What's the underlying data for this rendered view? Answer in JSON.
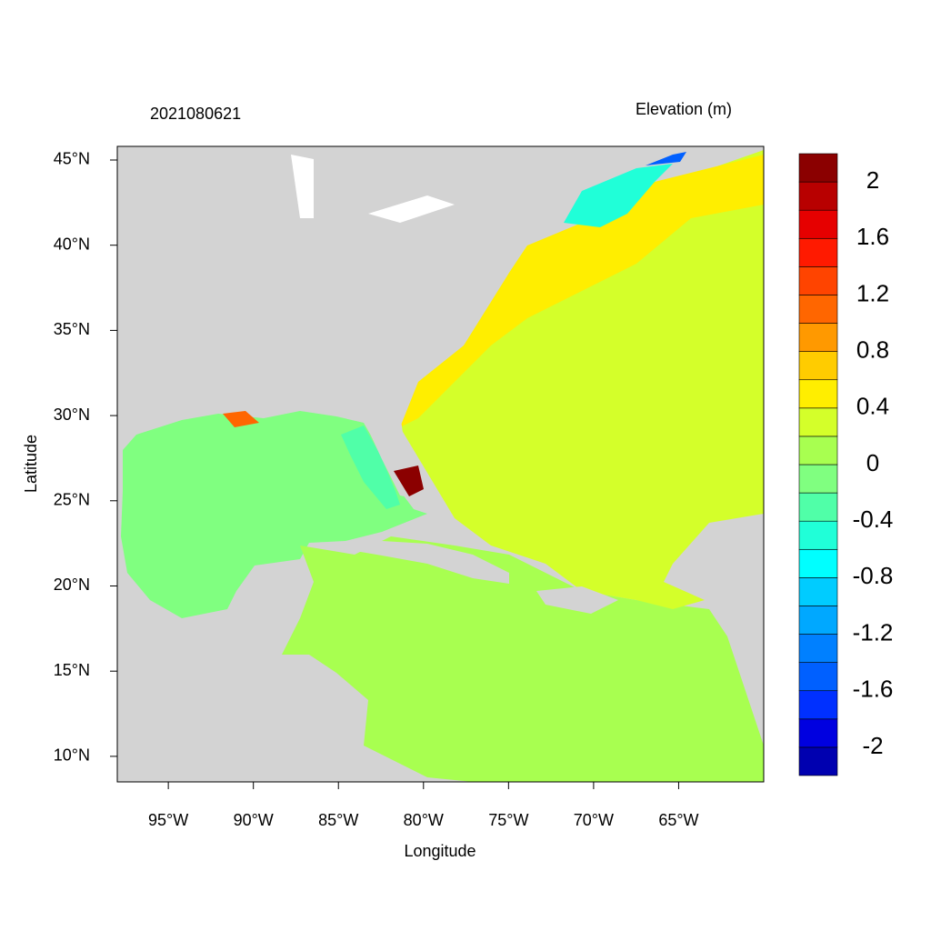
{
  "chart_data": {
    "type": "map",
    "title": "2021080621",
    "subtitle": "Elevation (m)",
    "xlabel": "Longitude",
    "ylabel": "Latitude",
    "xlim": [
      -98,
      -60
    ],
    "ylim": [
      8.5,
      45.8
    ],
    "xticks": [
      {
        "value": -95,
        "label": "95°W"
      },
      {
        "value": -90,
        "label": "90°W"
      },
      {
        "value": -85,
        "label": "85°W"
      },
      {
        "value": -80,
        "label": "80°W"
      },
      {
        "value": -75,
        "label": "75°W"
      },
      {
        "value": -70,
        "label": "70°W"
      },
      {
        "value": -65,
        "label": "65°W"
      }
    ],
    "yticks": [
      {
        "value": 10,
        "label": "10°N"
      },
      {
        "value": 15,
        "label": "15°N"
      },
      {
        "value": 20,
        "label": "20°N"
      },
      {
        "value": 25,
        "label": "25°N"
      },
      {
        "value": 30,
        "label": "30°N"
      },
      {
        "value": 35,
        "label": "35°N"
      },
      {
        "value": 40,
        "label": "40°N"
      },
      {
        "value": 45,
        "label": "45°N"
      }
    ],
    "colorbar": {
      "clim": [
        -2.2,
        2.2
      ],
      "colors": [
        "#0000b0",
        "#0000e0",
        "#0030ff",
        "#0060ff",
        "#0080ff",
        "#00a8ff",
        "#00ccff",
        "#00ffff",
        "#20ffd8",
        "#50ffa8",
        "#80ff80",
        "#a8ff50",
        "#d4ff2a",
        "#ffee00",
        "#ffcc00",
        "#ff9900",
        "#ff6600",
        "#ff4400",
        "#ff1a00",
        "#e60000",
        "#b80000",
        "#8b0000"
      ],
      "ticks": [
        -2,
        -1.6,
        -1.2,
        -0.8,
        -0.4,
        0,
        0.4,
        0.8,
        1.2,
        1.6,
        2
      ]
    }
  }
}
